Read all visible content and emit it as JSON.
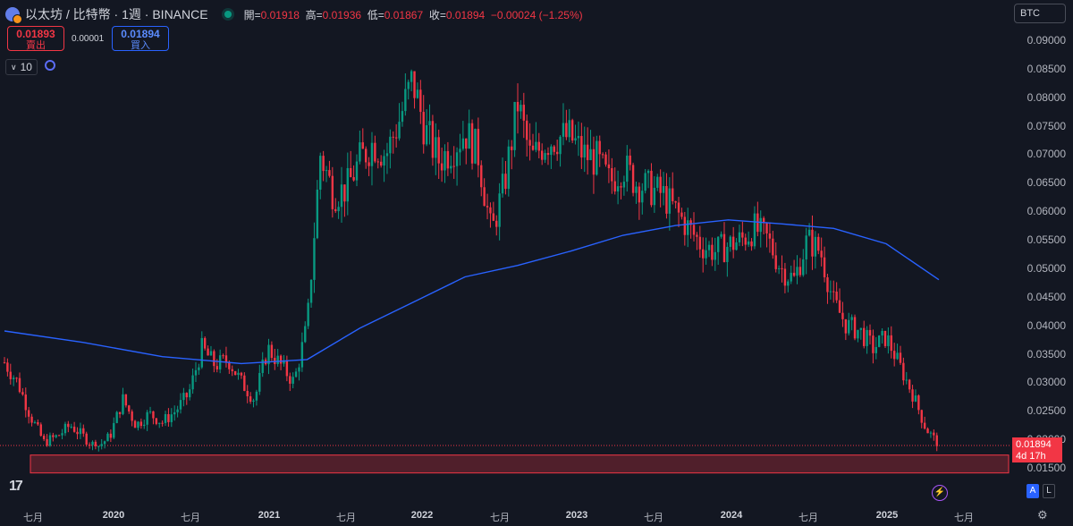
{
  "header": {
    "title": "以太坊 / 比特幣 · 1週 · BINANCE",
    "open_label": "開=",
    "open_value": "0.01918",
    "high_label": "高=",
    "high_value": "0.01936",
    "low_label": "低=",
    "low_value": "0.01867",
    "close_label": "收=",
    "close_value": "0.01894",
    "change": "−0.00024 (−1.25%)"
  },
  "trade": {
    "sell_price": "0.01893",
    "sell_label": "賣出",
    "spread": "0.00001",
    "buy_price": "0.01894",
    "buy_label": "買入"
  },
  "indicator": {
    "length": "10"
  },
  "currency_selector": "BTC",
  "price_tag": {
    "price": "0.01894",
    "countdown": "4d 17h"
  },
  "y_axis": [
    "0.09000",
    "0.08500",
    "0.08000",
    "0.07500",
    "0.07000",
    "0.06500",
    "0.06000",
    "0.05500",
    "0.05000",
    "0.04500",
    "0.04000",
    "0.03500",
    "0.03000",
    "0.02500",
    "0.02000",
    "0.01500"
  ],
  "x_axis": [
    {
      "label": "七月",
      "year": false
    },
    {
      "label": "2020",
      "year": true
    },
    {
      "label": "七月",
      "year": false
    },
    {
      "label": "2021",
      "year": true
    },
    {
      "label": "七月",
      "year": false
    },
    {
      "label": "2022",
      "year": true
    },
    {
      "label": "七月",
      "year": false
    },
    {
      "label": "2023",
      "year": true
    },
    {
      "label": "七月",
      "year": false
    },
    {
      "label": "2024",
      "year": true
    },
    {
      "label": "七月",
      "year": false
    },
    {
      "label": "2025",
      "year": true
    },
    {
      "label": "七月",
      "year": false
    }
  ],
  "scale_buttons": {
    "auto": "A",
    "log": "L"
  },
  "colors": {
    "up": "#089981",
    "down": "#f23645",
    "ma": "#2962ff",
    "zone": "#f23645"
  },
  "chart_data": {
    "type": "candlestick",
    "series_points": [
      {
        "t": "2019-05",
        "c": 0.0335
      },
      {
        "t": "2019-06",
        "c": 0.03
      },
      {
        "t": "2019-07",
        "c": 0.024
      },
      {
        "t": "2019-08",
        "c": 0.0195
      },
      {
        "t": "2019-09",
        "c": 0.0205
      },
      {
        "t": "2019-10",
        "c": 0.0225
      },
      {
        "t": "2019-11",
        "c": 0.0205
      },
      {
        "t": "2019-12",
        "c": 0.0185
      },
      {
        "t": "2020-01",
        "c": 0.0205
      },
      {
        "t": "2020-02",
        "c": 0.027
      },
      {
        "t": "2020-03",
        "c": 0.0225
      },
      {
        "t": "2020-04",
        "c": 0.0245
      },
      {
        "t": "2020-05",
        "c": 0.023
      },
      {
        "t": "2020-06",
        "c": 0.025
      },
      {
        "t": "2020-07",
        "c": 0.028
      },
      {
        "t": "2020-08",
        "c": 0.036
      },
      {
        "t": "2020-09",
        "c": 0.033
      },
      {
        "t": "2020-10",
        "c": 0.034
      },
      {
        "t": "2020-11",
        "c": 0.03
      },
      {
        "t": "2020-12",
        "c": 0.027
      },
      {
        "t": "2021-01",
        "c": 0.036
      },
      {
        "t": "2021-02",
        "c": 0.033
      },
      {
        "t": "2021-03",
        "c": 0.03
      },
      {
        "t": "2021-04",
        "c": 0.04
      },
      {
        "t": "2021-05",
        "c": 0.07
      },
      {
        "t": "2021-06",
        "c": 0.063
      },
      {
        "t": "2021-07",
        "c": 0.064
      },
      {
        "t": "2021-08",
        "c": 0.069
      },
      {
        "t": "2021-09",
        "c": 0.072
      },
      {
        "t": "2021-10",
        "c": 0.07
      },
      {
        "t": "2021-11",
        "c": 0.076
      },
      {
        "t": "2021-12",
        "c": 0.083
      },
      {
        "t": "2022-01",
        "c": 0.074
      },
      {
        "t": "2022-02",
        "c": 0.069
      },
      {
        "t": "2022-03",
        "c": 0.071
      },
      {
        "t": "2022-04",
        "c": 0.074
      },
      {
        "t": "2022-05",
        "c": 0.07
      },
      {
        "t": "2022-06",
        "c": 0.056
      },
      {
        "t": "2022-07",
        "c": 0.065
      },
      {
        "t": "2022-08",
        "c": 0.079
      },
      {
        "t": "2022-09",
        "c": 0.069
      },
      {
        "t": "2022-10",
        "c": 0.072
      },
      {
        "t": "2022-11",
        "c": 0.073
      },
      {
        "t": "2022-12",
        "c": 0.073
      },
      {
        "t": "2023-01",
        "c": 0.07
      },
      {
        "t": "2023-02",
        "c": 0.069
      },
      {
        "t": "2023-03",
        "c": 0.065
      },
      {
        "t": "2023-04",
        "c": 0.068
      },
      {
        "t": "2023-05",
        "c": 0.065
      },
      {
        "t": "2023-06",
        "c": 0.064
      },
      {
        "t": "2023-07",
        "c": 0.063
      },
      {
        "t": "2023-08",
        "c": 0.06
      },
      {
        "t": "2023-09",
        "c": 0.057
      },
      {
        "t": "2023-10",
        "c": 0.054
      },
      {
        "t": "2023-11",
        "c": 0.053
      },
      {
        "t": "2023-12",
        "c": 0.054
      },
      {
        "t": "2024-01",
        "c": 0.055
      },
      {
        "t": "2024-02",
        "c": 0.057
      },
      {
        "t": "2024-03",
        "c": 0.055
      },
      {
        "t": "2024-04",
        "c": 0.05
      },
      {
        "t": "2024-05",
        "c": 0.048
      },
      {
        "t": "2024-06",
        "c": 0.055
      },
      {
        "t": "2024-07",
        "c": 0.053
      },
      {
        "t": "2024-08",
        "c": 0.044
      },
      {
        "t": "2024-09",
        "c": 0.04
      },
      {
        "t": "2024-10",
        "c": 0.039
      },
      {
        "t": "2024-11",
        "c": 0.036
      },
      {
        "t": "2024-12",
        "c": 0.038
      },
      {
        "t": "2025-01",
        "c": 0.033
      },
      {
        "t": "2025-02",
        "c": 0.028
      },
      {
        "t": "2025-03",
        "c": 0.022
      },
      {
        "t": "2025-04",
        "c": 0.0189
      }
    ],
    "moving_average": [
      {
        "t": "2019-05",
        "v": 0.039
      },
      {
        "t": "2019-11",
        "v": 0.037
      },
      {
        "t": "2020-05",
        "v": 0.0345
      },
      {
        "t": "2020-11",
        "v": 0.0333
      },
      {
        "t": "2021-04",
        "v": 0.034
      },
      {
        "t": "2021-08",
        "v": 0.0395
      },
      {
        "t": "2021-12",
        "v": 0.044
      },
      {
        "t": "2022-04",
        "v": 0.0485
      },
      {
        "t": "2022-08",
        "v": 0.0505
      },
      {
        "t": "2022-12",
        "v": 0.053
      },
      {
        "t": "2023-04",
        "v": 0.0558
      },
      {
        "t": "2023-08",
        "v": 0.0575
      },
      {
        "t": "2023-12",
        "v": 0.0585
      },
      {
        "t": "2024-04",
        "v": 0.0578
      },
      {
        "t": "2024-08",
        "v": 0.057
      },
      {
        "t": "2024-12",
        "v": 0.0543
      },
      {
        "t": "2025-04",
        "v": 0.048
      }
    ],
    "support_zone": [
      0.0152,
      0.0185
    ],
    "last_price": 0.01894,
    "ylim": [
      0.0145,
      0.0925
    ],
    "grid": false
  }
}
